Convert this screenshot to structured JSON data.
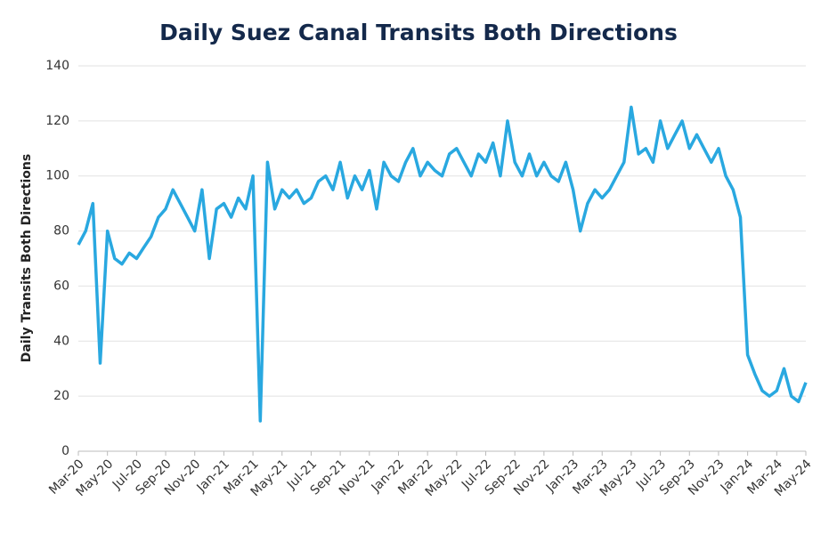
{
  "chart_data": {
    "type": "line",
    "title": "Daily Suez Canal Transits Both Directions",
    "y_label": "Daily Transits Both Directions",
    "categories": [
      "Mar-20",
      null,
      null,
      null,
      "May-20",
      null,
      null,
      null,
      "Jul-20",
      null,
      null,
      null,
      "Sep-20",
      null,
      null,
      null,
      "Nov-20",
      null,
      null,
      null,
      "Jan-21",
      null,
      null,
      null,
      "Mar-21",
      null,
      null,
      null,
      "May-21",
      null,
      null,
      null,
      "Jul-21",
      null,
      null,
      null,
      "Sep-21",
      null,
      null,
      null,
      "Nov-21",
      null,
      null,
      null,
      "Jan-22",
      null,
      null,
      null,
      "Mar-22",
      null,
      null,
      null,
      "May-22",
      null,
      null,
      null,
      "Jul-22",
      null,
      null,
      null,
      "Sep-22",
      null,
      null,
      null,
      "Nov-22",
      null,
      null,
      null,
      "Jan-23",
      null,
      null,
      null,
      "Mar-23",
      null,
      null,
      null,
      "May-23",
      null,
      null,
      null,
      "Jul-23",
      null,
      null,
      null,
      "Sep-23",
      null,
      null,
      null,
      "Nov-23",
      null,
      null,
      null,
      "Jan-24",
      null,
      null,
      null,
      "Mar-24",
      null,
      null,
      null,
      "May-24"
    ],
    "values": [
      75,
      80,
      90,
      32,
      80,
      70,
      68,
      72,
      70,
      74,
      78,
      85,
      88,
      95,
      90,
      85,
      80,
      95,
      70,
      88,
      90,
      85,
      92,
      88,
      100,
      11,
      105,
      88,
      95,
      92,
      95,
      90,
      92,
      98,
      100,
      95,
      105,
      92,
      100,
      95,
      102,
      88,
      105,
      100,
      98,
      105,
      110,
      100,
      105,
      102,
      100,
      108,
      110,
      105,
      100,
      108,
      105,
      112,
      100,
      120,
      105,
      100,
      108,
      100,
      105,
      100,
      98,
      105,
      95,
      80,
      90,
      95,
      92,
      95,
      100,
      105,
      125,
      108,
      110,
      105,
      120,
      110,
      115,
      120,
      110,
      115,
      110,
      105,
      110,
      100,
      95,
      85,
      35,
      28,
      22,
      20,
      22,
      30,
      20,
      18,
      25
    ],
    "color": "#29a8e0",
    "ylim": [
      0,
      140
    ],
    "yticks": [
      0,
      20,
      40,
      60,
      80,
      100,
      120,
      140
    ],
    "grid": true
  }
}
